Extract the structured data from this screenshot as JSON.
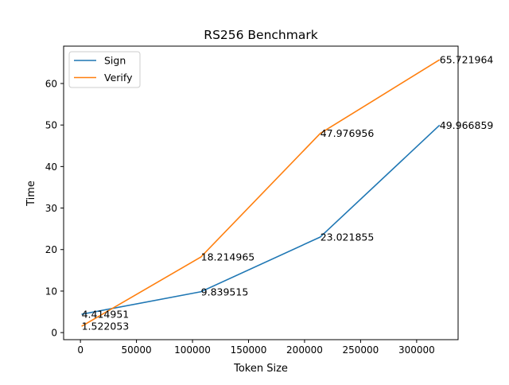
{
  "chart_data": {
    "type": "line",
    "title": "RS256 Benchmark",
    "xlabel": "Token Size",
    "ylabel": "Time",
    "xlim": [
      -15000,
      337000
    ],
    "ylim": [
      -1.7,
      69.0
    ],
    "x": [
      1024,
      107520,
      214016,
      320512
    ],
    "xticks": [
      0,
      50000,
      100000,
      150000,
      200000,
      250000,
      300000
    ],
    "yticks": [
      0,
      10,
      20,
      30,
      40,
      50,
      60
    ],
    "grid": false,
    "legend_position": "top-left",
    "series": [
      {
        "name": "Sign",
        "color": "#1f77b4",
        "values": [
          4.414951,
          9.839515,
          23.021855,
          49.966859
        ],
        "labels": [
          "4.414951",
          "9.839515",
          "23.021855",
          "49.966859"
        ]
      },
      {
        "name": "Verify",
        "color": "#ff7f0e",
        "values": [
          1.522053,
          18.214965,
          47.976956,
          65.721964
        ],
        "labels": [
          "1.522053",
          "18.214965",
          "47.976956",
          "65.721964"
        ]
      }
    ]
  }
}
